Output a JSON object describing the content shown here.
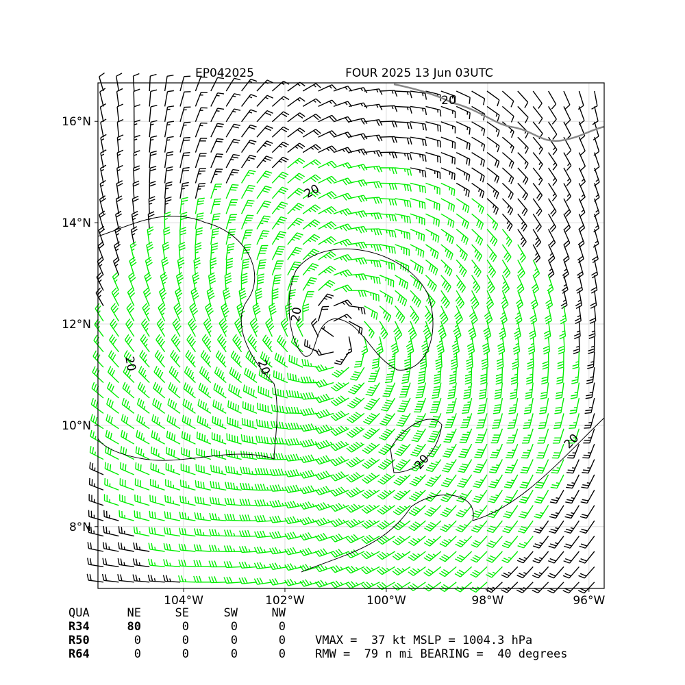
{
  "map": {
    "title_left": "EP042025",
    "title_right": "FOUR 2025 13 Jun 03UTC",
    "xlim": [
      -105.69,
      -95.7
    ],
    "ylim": [
      6.78,
      16.76
    ],
    "xticks": [
      {
        "value": -104,
        "label": "104°W"
      },
      {
        "value": -102,
        "label": "102°W"
      },
      {
        "value": -100,
        "label": "100°W"
      },
      {
        "value": -98,
        "label": "98°W"
      },
      {
        "value": -96,
        "label": "96°W"
      }
    ],
    "yticks": [
      {
        "value": 8,
        "label": "8°N"
      },
      {
        "value": 10,
        "label": "10°N"
      },
      {
        "value": 12,
        "label": "12°N"
      },
      {
        "value": 14,
        "label": "14°N"
      },
      {
        "value": 16,
        "label": "16°N"
      }
    ],
    "contour_label": "20",
    "barb_colors": [
      "#000000",
      "#00ee00"
    ]
  },
  "table": {
    "header": [
      "QUA",
      "NE",
      "SE",
      "SW",
      "NW"
    ],
    "rows": [
      [
        "R34",
        "80",
        "0",
        "0",
        "0"
      ],
      [
        "R50",
        "0",
        "0",
        "0",
        "0"
      ],
      [
        "R64",
        "0",
        "0",
        "0",
        "0"
      ]
    ]
  },
  "summary": [
    "VMAX =  37 kt MSLP = 1004.3 hPa",
    "RMW =  79 n mi BEARING =  40 degrees"
  ]
}
